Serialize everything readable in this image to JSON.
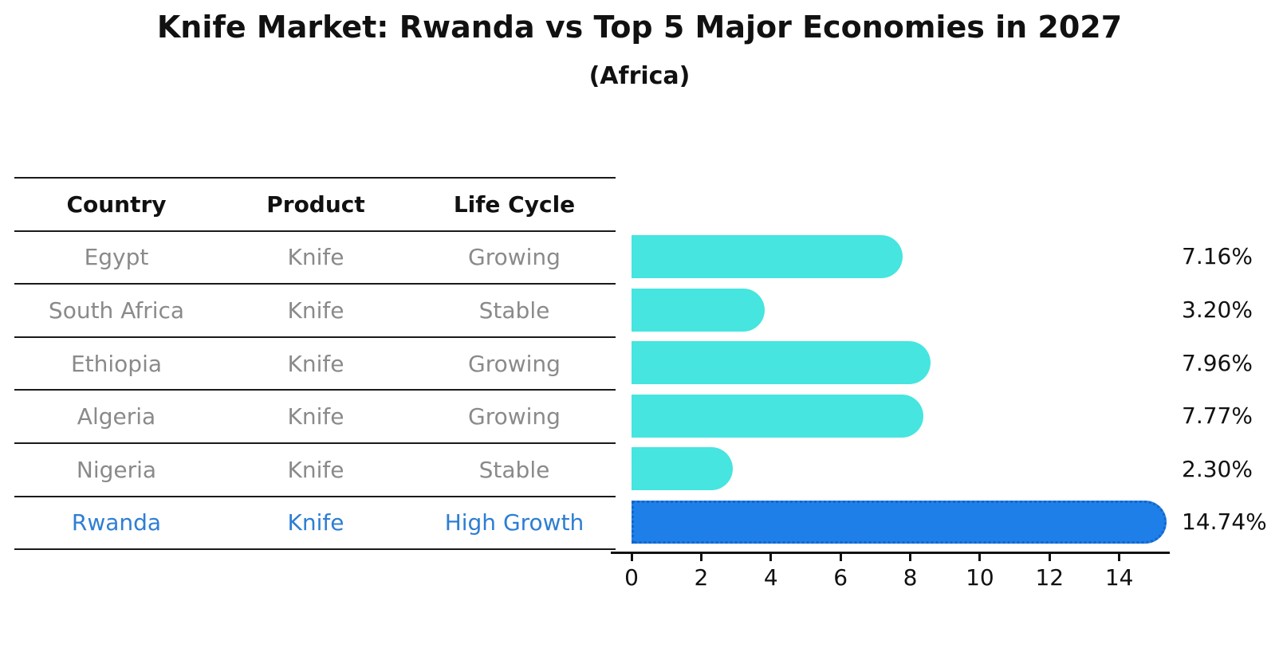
{
  "header": {
    "title": "Knife Market: Rwanda vs Top 5 Major Economies in 2027",
    "subtitle": "(Africa)"
  },
  "table": {
    "columns": [
      "Country",
      "Product",
      "Life Cycle"
    ],
    "rows": [
      {
        "country": "Egypt",
        "product": "Knife",
        "life_cycle": "Growing",
        "highlight": false
      },
      {
        "country": "South Africa",
        "product": "Knife",
        "life_cycle": "Stable",
        "highlight": false
      },
      {
        "country": "Ethiopia",
        "product": "Knife",
        "life_cycle": "Growing",
        "highlight": false
      },
      {
        "country": "Algeria",
        "product": "Knife",
        "life_cycle": "Growing",
        "highlight": false
      },
      {
        "country": "Nigeria",
        "product": "Knife",
        "life_cycle": "Stable",
        "highlight": false
      },
      {
        "country": "Rwanda",
        "product": "Knife",
        "life_cycle": "High Growth",
        "highlight": true
      }
    ]
  },
  "chart_data": {
    "type": "bar",
    "orientation": "horizontal",
    "title": "Knife Market: Rwanda vs Top 5 Major Economies in 2027",
    "subtitle": "(Africa)",
    "categories": [
      "Egypt",
      "South Africa",
      "Ethiopia",
      "Algeria",
      "Nigeria",
      "Rwanda"
    ],
    "values": [
      7.16,
      3.2,
      7.96,
      7.77,
      2.3,
      14.74
    ],
    "value_labels": [
      "7.16%",
      "3.20%",
      "7.96%",
      "7.77%",
      "2.30%",
      "14.74%"
    ],
    "highlight_index": 5,
    "x_ticks": [
      "0",
      "2",
      "4",
      "6",
      "8",
      "10",
      "12",
      "14"
    ],
    "xlim": [
      0,
      15.45
    ],
    "grid": false,
    "legend": false,
    "unit": "%"
  },
  "colors": {
    "bar_default": "#46E5DF",
    "bar_highlight": "#1E7FE8",
    "bar_highlight_border": "#1565C8",
    "highlight_text": "#2D7ED3",
    "row_text": "#8A8A8A",
    "header_text": "#111111",
    "axis": "#111111"
  }
}
